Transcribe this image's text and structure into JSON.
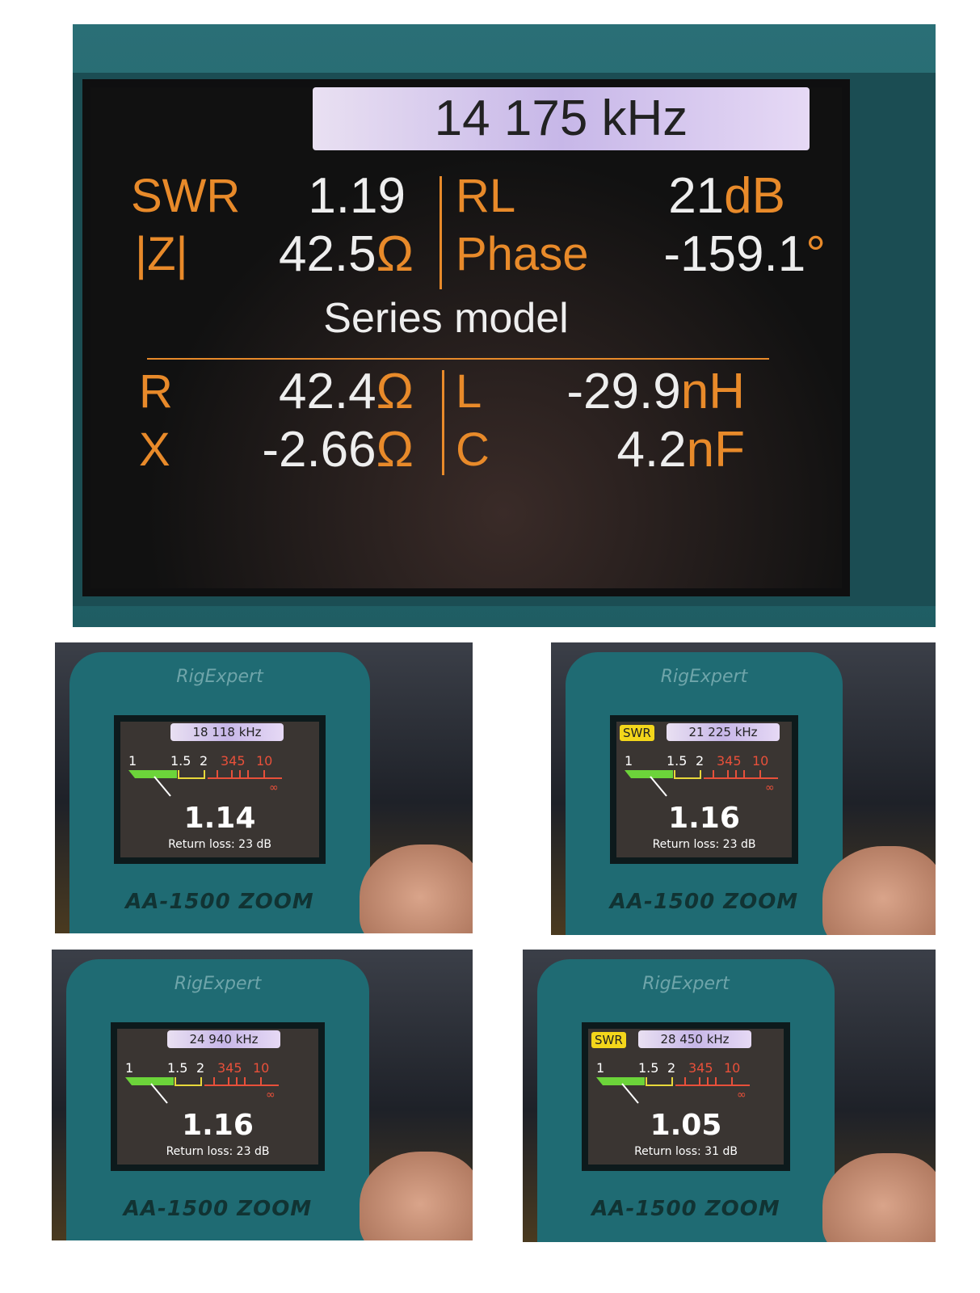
{
  "main_display": {
    "frequency": "14 175 kHz",
    "swr": {
      "label": "SWR",
      "value": "1.19"
    },
    "rl": {
      "label": "RL",
      "value": "21",
      "unit": "dB"
    },
    "z": {
      "label": "|Z|",
      "value": "42.5",
      "unit": "Ω"
    },
    "phase": {
      "label": "Phase",
      "value": "-159.1",
      "unit": "°"
    },
    "model_title": "Series model",
    "r": {
      "label": "R",
      "value": "42.4",
      "unit": "Ω"
    },
    "l": {
      "label": "L",
      "value": "-29.9",
      "unit": "nH"
    },
    "x": {
      "label": "X",
      "value": "-2.66",
      "unit": "Ω"
    },
    "c": {
      "label": "C",
      "value": "4.2",
      "unit": "nF"
    }
  },
  "scale_labels": {
    "one": "1",
    "one_five": "1.5",
    "two": "2",
    "red": "345",
    "ten": "10",
    "inf": "∞"
  },
  "colors": {
    "case": "#1f6b73",
    "orange": "#e88a2a",
    "green": "#6cd43a",
    "yellow": "#e8d83a",
    "red": "#e8503a"
  },
  "devices": [
    {
      "brand": "RigExpert",
      "frequency": "18 118 kHz",
      "swr_badge": "",
      "swr": "1.14",
      "return_loss": "Return loss: 23 dB",
      "model": "AA-1500 ZOOM"
    },
    {
      "brand": "RigExpert",
      "frequency": "21 225 kHz",
      "swr_badge": "SWR",
      "swr": "1.16",
      "return_loss": "Return loss: 23 dB",
      "model": "AA-1500 ZOOM"
    },
    {
      "brand": "RigExpert",
      "frequency": "24 940 kHz",
      "swr_badge": "",
      "swr": "1.16",
      "return_loss": "Return loss: 23 dB",
      "model": "AA-1500 ZOOM"
    },
    {
      "brand": "RigExpert",
      "frequency": "28 450 kHz",
      "swr_badge": "SWR",
      "swr": "1.05",
      "return_loss": "Return loss: 31 dB",
      "model": "AA-1500 ZOOM"
    }
  ]
}
